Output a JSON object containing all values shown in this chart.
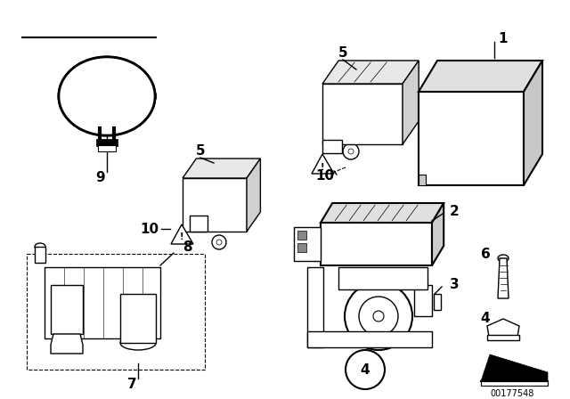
{
  "background_color": "#ffffff",
  "part_number": "00177548",
  "fig_width": 6.4,
  "fig_height": 4.48,
  "dpi": 100
}
